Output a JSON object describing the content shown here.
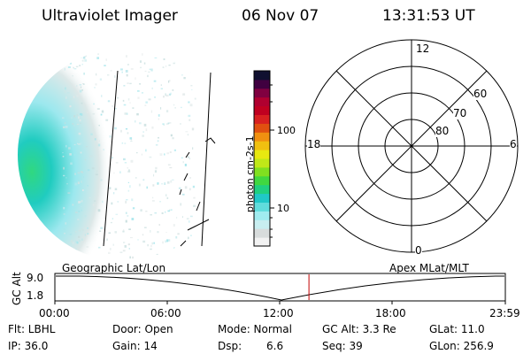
{
  "header": {
    "instrument": "Ultraviolet Imager",
    "date": "06 Nov 07",
    "time": "13:31:53 UT"
  },
  "colorbar": {
    "unit_label": "photon cm-2s-1",
    "ticks": [
      "100",
      "10"
    ],
    "colors": [
      "#f2f2f2",
      "#d8dcdc",
      "#c8eef0",
      "#a0ecf0",
      "#60dcdc",
      "#20c8c8",
      "#20d080",
      "#40d840",
      "#80e020",
      "#c0e818",
      "#e8e810",
      "#f0c010",
      "#f09010",
      "#e05010",
      "#d82020",
      "#c00020",
      "#b00030",
      "#800040",
      "#400040",
      "#101030"
    ],
    "log_range": [
      0.4,
      2.4
    ]
  },
  "polar": {
    "mlt_labels": {
      "top": "12",
      "bottom": "0",
      "left": "18",
      "right": "6"
    },
    "lat_labels": [
      "60",
      "70",
      "80"
    ]
  },
  "alt_panel": {
    "left_label": "Geographic Lat/Lon",
    "right_label": "Apex MLat/MLT",
    "axis_title": "GC Alt",
    "yticks": [
      "9.0",
      "1.8"
    ],
    "xticks": [
      "00:00",
      "06:00",
      "12:00",
      "18:00",
      "23:59"
    ],
    "current_time_fraction": 0.564
  },
  "footer": {
    "row1": [
      "Flt: LBHL",
      "Door: Open",
      "Mode: Normal",
      "GC Alt: 3.3 Re",
      "GLat: 11.0"
    ],
    "row2_prefix": [
      "IP: 36.0",
      "Gain: 14"
    ],
    "dsp_label": "Dsp:",
    "dsp_value": "6.6",
    "row2_suffix": [
      "Seq: 39",
      "GLon: 256.9"
    ]
  },
  "colors": {
    "marker": "#c00000",
    "foreground": "#000000",
    "background": "#ffffff"
  }
}
